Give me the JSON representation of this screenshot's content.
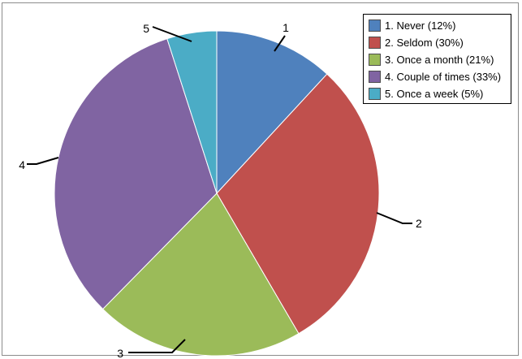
{
  "chart_data": {
    "type": "pie",
    "title": "",
    "categories": [
      "1. Never (12%)",
      "2. Seldom (30%)",
      "3. Once a month (21%)",
      "4. Couple of times (33%)",
      "5. Once a week (5%)"
    ],
    "slice_labels": [
      "1",
      "2",
      "3",
      "4",
      "5"
    ],
    "values": [
      12,
      30,
      21,
      33,
      5
    ],
    "colors": [
      "#4f81bd",
      "#c0504d",
      "#9bbb59",
      "#8064a2",
      "#4bacc6"
    ],
    "legend_position": "top-right"
  }
}
